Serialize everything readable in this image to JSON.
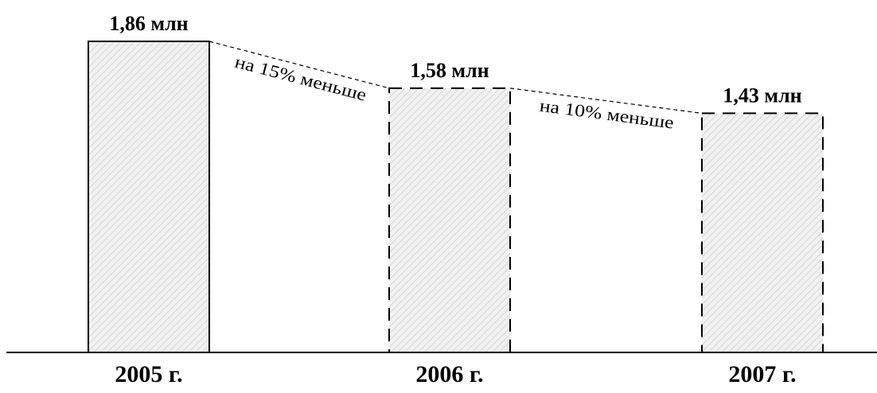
{
  "chart_data": {
    "type": "bar",
    "title": "",
    "xlabel": "",
    "ylabel": "",
    "categories": [
      "2005 г.",
      "2006 г.",
      "2007 г."
    ],
    "values": [
      1.86,
      1.58,
      1.43
    ],
    "value_labels": [
      "1,86 млн",
      "1,58 млн",
      "1,43 млн"
    ],
    "bar_styles": [
      "solid",
      "dashed",
      "dashed"
    ],
    "ylim": [
      0,
      1.86
    ],
    "grid": false,
    "annotations": [
      {
        "between": [
          0,
          1
        ],
        "text": "на 15% меньше"
      },
      {
        "between": [
          1,
          2
        ],
        "text": "на 10% меньше"
      }
    ],
    "colors": {
      "bar_fill": "#f1f1f1",
      "hatch": "#d6d6d6",
      "stroke": "#000000"
    }
  }
}
